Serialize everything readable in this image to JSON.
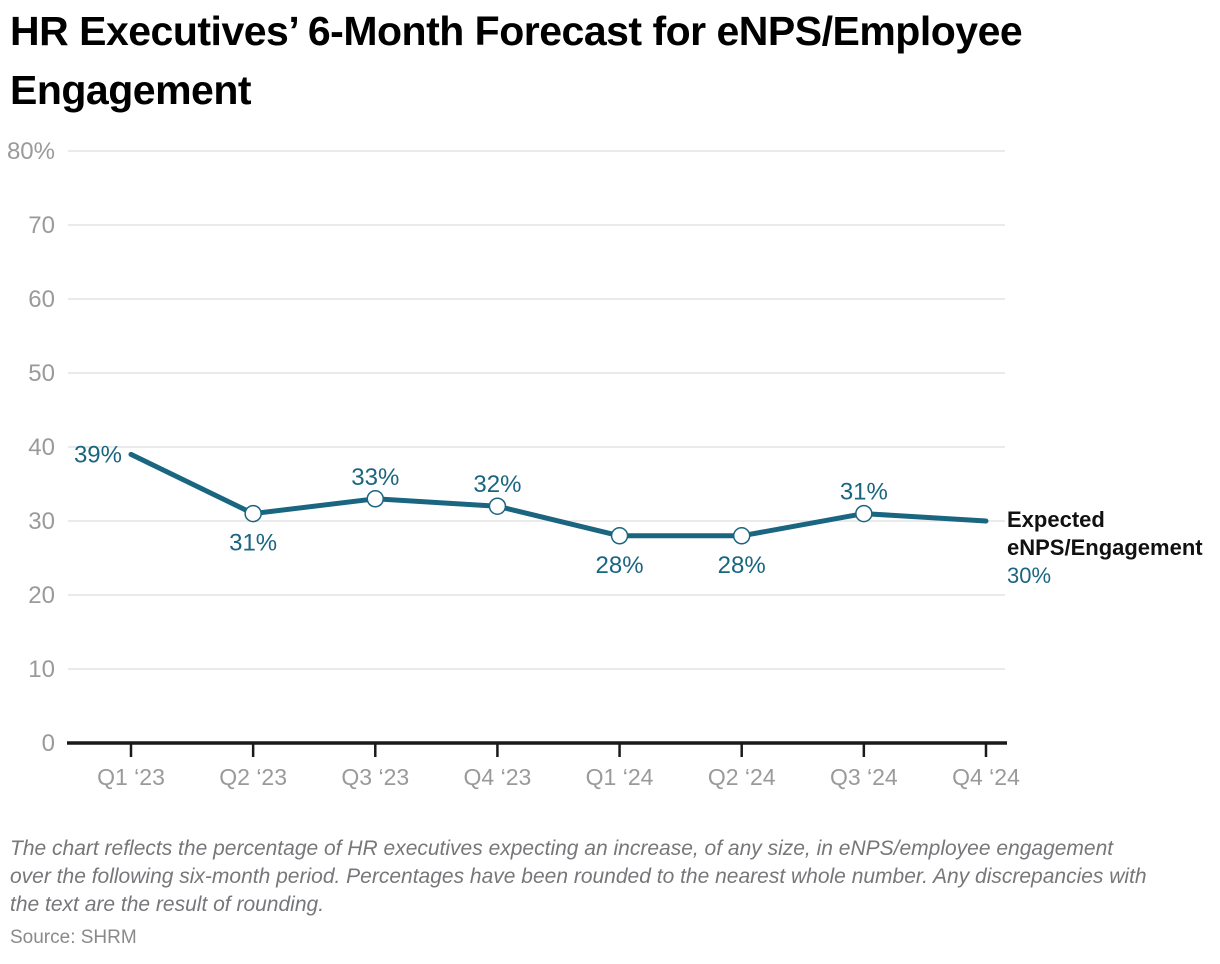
{
  "title": "HR Executives’ 6-Month Forecast for eNPS/Employee Engagement",
  "footnote": "The chart reflects the percentage of HR executives expecting an increase, of any size, in eNPS/employee engagement over the following six-month period. Percentages have been rounded to the nearest whole number. Any discrepancies with the text are the result of rounding.",
  "source": "Source: SHRM",
  "chart_data": {
    "type": "line",
    "title": "HR Executives’ 6-Month Forecast for eNPS/Employee Engagement",
    "categories": [
      "Q1 ‘23",
      "Q2 ‘23",
      "Q3 ‘23",
      "Q4 ‘23",
      "Q1 ‘24",
      "Q2 ‘24",
      "Q3 ‘24",
      "Q4 ‘24"
    ],
    "series": [
      {
        "name": "Expected eNPS/Engagement",
        "values": [
          39,
          31,
          33,
          32,
          28,
          28,
          31,
          30
        ],
        "color": "#1A6580"
      }
    ],
    "ylim": [
      0,
      80
    ],
    "yticks": [
      {
        "value": 80,
        "label": "80%"
      },
      {
        "value": 70,
        "label": "70"
      },
      {
        "value": 60,
        "label": "60"
      },
      {
        "value": 50,
        "label": "50"
      },
      {
        "value": 40,
        "label": "40"
      },
      {
        "value": 30,
        "label": "30"
      },
      {
        "value": 20,
        "label": "20"
      },
      {
        "value": 10,
        "label": "10"
      },
      {
        "value": 0,
        "label": "0"
      }
    ],
    "grid": true,
    "legend_position": "end-of-line",
    "point_labels": [
      {
        "text": "39%",
        "placement": "left",
        "marker": false
      },
      {
        "text": "31%",
        "placement": "below",
        "marker": true
      },
      {
        "text": "33%",
        "placement": "above",
        "marker": true
      },
      {
        "text": "32%",
        "placement": "above",
        "marker": true
      },
      {
        "text": "28%",
        "placement": "below",
        "marker": true
      },
      {
        "text": "28%",
        "placement": "below",
        "marker": true
      },
      {
        "text": "31%",
        "placement": "above",
        "marker": true
      },
      {
        "text": "30%",
        "placement": "none",
        "marker": false
      }
    ],
    "annotation": {
      "line1": "Expected",
      "line2": "eNPS/Engagement",
      "value": "30%"
    },
    "colors": {
      "line": "#1A6580",
      "label": "#1A6580",
      "tick_text": "#9A9A9B",
      "grid": "#E3E3E3",
      "axis": "#1A1A1A"
    }
  }
}
